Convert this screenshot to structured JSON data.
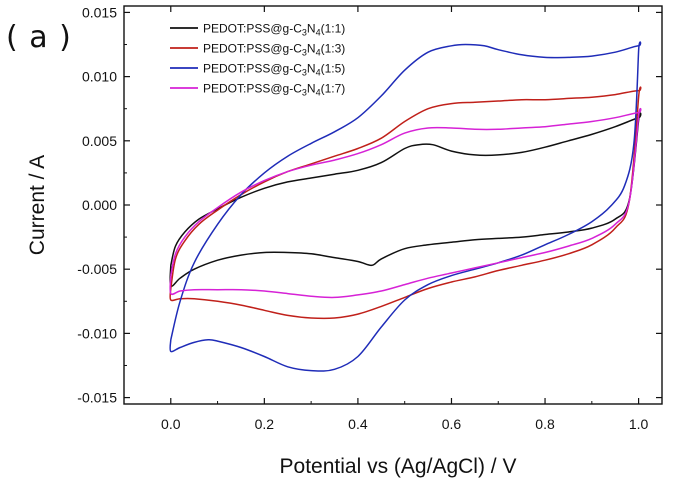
{
  "panel_label": "( a )",
  "chart_data": {
    "type": "line",
    "subtype": "cyclic-voltammogram",
    "title": "",
    "xlabel": "Potential vs (Ag/AgCl) / V",
    "ylabel": "Current / A",
    "xlim": [
      -0.1,
      1.05
    ],
    "ylim": [
      -0.0155,
      0.0155
    ],
    "xticks": [
      0.0,
      0.2,
      0.4,
      0.6,
      0.8,
      1.0
    ],
    "xtick_labels": [
      "0.0",
      "0.2",
      "0.4",
      "0.6",
      "0.8",
      "1.0"
    ],
    "yticks": [
      -0.015,
      -0.01,
      -0.005,
      0.0,
      0.005,
      0.01,
      0.015
    ],
    "ytick_labels": [
      "-0.015",
      "-0.010",
      "-0.005",
      "0.000",
      "0.005",
      "0.010",
      "0.015"
    ],
    "grid": false,
    "legend_position": "top-left",
    "series": [
      {
        "name": "PEDOT:PSS@g-C3N4(1:1)",
        "legend": {
          "base": "PEDOT:PSS@g-C",
          "sub1": "3",
          "mid": "N",
          "sub2": "4",
          "tail": "(1:1)"
        },
        "color": "#111111",
        "x": [
          0.0,
          0.01,
          0.03,
          0.06,
          0.1,
          0.15,
          0.2,
          0.25,
          0.3,
          0.35,
          0.4,
          0.45,
          0.5,
          0.53,
          0.56,
          0.6,
          0.65,
          0.7,
          0.75,
          0.8,
          0.85,
          0.9,
          0.95,
          1.0,
          1.0,
          0.98,
          0.95,
          0.9,
          0.85,
          0.8,
          0.75,
          0.7,
          0.65,
          0.6,
          0.55,
          0.5,
          0.45,
          0.43,
          0.4,
          0.35,
          0.3,
          0.25,
          0.2,
          0.15,
          0.1,
          0.05,
          0.02,
          0.0,
          0.0
        ],
        "y": [
          -0.0047,
          -0.0032,
          -0.0021,
          -0.0011,
          -0.0003,
          0.0006,
          0.0013,
          0.0018,
          0.0021,
          0.0024,
          0.0027,
          0.0033,
          0.0044,
          0.0047,
          0.0047,
          0.0042,
          0.0039,
          0.0039,
          0.0041,
          0.0045,
          0.005,
          0.0055,
          0.0061,
          0.0068,
          0.0066,
          0.0004,
          -0.0011,
          -0.0018,
          -0.0021,
          -0.0023,
          -0.0025,
          -0.0026,
          -0.0027,
          -0.0029,
          -0.0031,
          -0.0034,
          -0.0042,
          -0.0047,
          -0.0044,
          -0.0041,
          -0.0038,
          -0.0037,
          -0.0037,
          -0.0039,
          -0.0043,
          -0.005,
          -0.0057,
          -0.0063,
          -0.0047
        ]
      },
      {
        "name": "PEDOT:PSS@g-C3N4(1:3)",
        "legend": {
          "base": "PEDOT:PSS@g-C",
          "sub1": "3",
          "mid": "N",
          "sub2": "4",
          "tail": "(1:3)"
        },
        "color": "#c0201a",
        "x": [
          0.0,
          0.01,
          0.03,
          0.06,
          0.1,
          0.15,
          0.2,
          0.25,
          0.3,
          0.35,
          0.4,
          0.45,
          0.5,
          0.55,
          0.6,
          0.65,
          0.7,
          0.75,
          0.8,
          0.85,
          0.9,
          0.95,
          1.0,
          1.0,
          0.98,
          0.95,
          0.9,
          0.85,
          0.8,
          0.75,
          0.7,
          0.65,
          0.6,
          0.55,
          0.5,
          0.45,
          0.4,
          0.35,
          0.3,
          0.25,
          0.2,
          0.15,
          0.1,
          0.05,
          0.02,
          0.0,
          0.0
        ],
        "y": [
          -0.0065,
          -0.0042,
          -0.0028,
          -0.0015,
          -0.0004,
          0.0008,
          0.0018,
          0.0026,
          0.0032,
          0.0038,
          0.0044,
          0.0052,
          0.0065,
          0.0075,
          0.0079,
          0.008,
          0.0081,
          0.0082,
          0.0082,
          0.0083,
          0.0084,
          0.0086,
          0.0089,
          0.0084,
          0.0003,
          -0.0018,
          -0.0031,
          -0.0038,
          -0.0043,
          -0.0047,
          -0.0051,
          -0.0056,
          -0.006,
          -0.0065,
          -0.0072,
          -0.0079,
          -0.0085,
          -0.0088,
          -0.0088,
          -0.0086,
          -0.0082,
          -0.0078,
          -0.0075,
          -0.0073,
          -0.0073,
          -0.0074,
          -0.0065
        ]
      },
      {
        "name": "PEDOT:PSS@g-C3N4(1:5)",
        "legend": {
          "base": "PEDOT:PSS@g-C",
          "sub1": "3",
          "mid": "N",
          "sub2": "4",
          "tail": "(1:5)"
        },
        "color": "#1f2cb8",
        "x": [
          0.0,
          0.02,
          0.05,
          0.1,
          0.15,
          0.2,
          0.25,
          0.3,
          0.35,
          0.4,
          0.45,
          0.5,
          0.55,
          0.6,
          0.63,
          0.67,
          0.7,
          0.75,
          0.8,
          0.85,
          0.9,
          0.95,
          1.0,
          1.0,
          0.99,
          0.97,
          0.94,
          0.9,
          0.85,
          0.8,
          0.75,
          0.7,
          0.65,
          0.6,
          0.55,
          0.5,
          0.45,
          0.4,
          0.35,
          0.3,
          0.25,
          0.2,
          0.15,
          0.1,
          0.08,
          0.05,
          0.02,
          0.0,
          0.0
        ],
        "y": [
          -0.0105,
          -0.0075,
          -0.0045,
          -0.0015,
          0.0008,
          0.0025,
          0.0038,
          0.0048,
          0.0057,
          0.0068,
          0.0085,
          0.0105,
          0.0119,
          0.0124,
          0.0125,
          0.0124,
          0.0121,
          0.0117,
          0.0115,
          0.0115,
          0.0116,
          0.0119,
          0.0124,
          0.012,
          0.0048,
          0.0015,
          -0.0001,
          -0.0013,
          -0.0023,
          -0.0031,
          -0.0039,
          -0.0045,
          -0.005,
          -0.0055,
          -0.0062,
          -0.0074,
          -0.0095,
          -0.0118,
          -0.0128,
          -0.0129,
          -0.0126,
          -0.0118,
          -0.0111,
          -0.0106,
          -0.0105,
          -0.0107,
          -0.0111,
          -0.0114,
          -0.0105
        ]
      },
      {
        "name": "PEDOT:PSS@g-C3N4(1:7)",
        "legend": {
          "base": "PEDOT:PSS@g-C",
          "sub1": "3",
          "mid": "N",
          "sub2": "4",
          "tail": "(1:7)"
        },
        "color": "#d622d6",
        "x": [
          0.0,
          0.01,
          0.03,
          0.06,
          0.1,
          0.15,
          0.2,
          0.25,
          0.3,
          0.35,
          0.4,
          0.45,
          0.5,
          0.55,
          0.6,
          0.65,
          0.7,
          0.75,
          0.8,
          0.85,
          0.9,
          0.95,
          1.0,
          1.0,
          0.98,
          0.95,
          0.9,
          0.85,
          0.8,
          0.75,
          0.7,
          0.65,
          0.6,
          0.55,
          0.5,
          0.45,
          0.4,
          0.35,
          0.3,
          0.25,
          0.2,
          0.15,
          0.1,
          0.05,
          0.02,
          0.0,
          0.0
        ],
        "y": [
          -0.0055,
          -0.0038,
          -0.0025,
          -0.0013,
          -0.0002,
          0.001,
          0.0019,
          0.0026,
          0.0031,
          0.0035,
          0.004,
          0.0047,
          0.0056,
          0.006,
          0.006,
          0.0059,
          0.0059,
          0.006,
          0.0061,
          0.0063,
          0.0065,
          0.0068,
          0.0072,
          0.0069,
          0.0003,
          -0.0015,
          -0.0026,
          -0.0032,
          -0.0037,
          -0.0041,
          -0.0045,
          -0.0049,
          -0.0053,
          -0.0057,
          -0.0062,
          -0.0067,
          -0.007,
          -0.0072,
          -0.0071,
          -0.0069,
          -0.0067,
          -0.0066,
          -0.0066,
          -0.0066,
          -0.0067,
          -0.0069,
          -0.0055
        ]
      }
    ]
  }
}
